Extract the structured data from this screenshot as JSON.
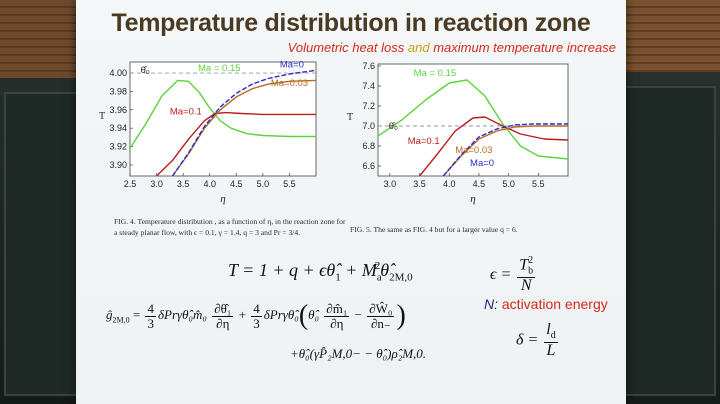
{
  "slide": {
    "title": "Temperature distribution in reaction zone",
    "subtitle_a": "Volumetric heat loss",
    "subtitle_and": "and",
    "subtitle_b": "maximum temperature increase"
  },
  "figures": [
    {
      "caption": "FIG. 4. Temperature distribution , as a function of η, in the reaction zone for a steady planar flow, with ϵ = 0.1, γ = 1.4, q = 3 and Pr = 3/4.",
      "chart_data": {
        "type": "line",
        "xlabel": "η",
        "ylabel": "T",
        "xlim": [
          2.5,
          6.0
        ],
        "ylim": [
          3.888,
          4.012
        ],
        "x_ticks": [
          "2.5",
          "3.0",
          "3.5",
          "4.0",
          "4.5",
          "5.0",
          "5.5"
        ],
        "y_ticks": [
          "3.90",
          "3.92",
          "3.94",
          "3.96",
          "3.98",
          "4.00"
        ],
        "reference_line": {
          "label": "θ̂₀",
          "y": 4.0,
          "style": "dashed",
          "color": "#9a9a9a"
        },
        "series": [
          {
            "name": "Ma = 0.15",
            "color": "#5ad43a",
            "x": [
              2.5,
              2.8,
              3.1,
              3.4,
              3.6,
              3.8,
              4.0,
              4.2,
              4.4,
              4.7,
              5.0,
              5.5,
              6.0
            ],
            "y": [
              3.918,
              3.945,
              3.975,
              3.992,
              3.991,
              3.979,
              3.962,
              3.948,
              3.94,
              3.934,
              3.932,
              3.931,
              3.931
            ]
          },
          {
            "name": "Ma=0.1",
            "color": "#b81e1e",
            "x": [
              3.0,
              3.3,
              3.6,
              3.9,
              4.1,
              4.3,
              4.6,
              5.0,
              5.5,
              6.0
            ],
            "y": [
              3.888,
              3.905,
              3.928,
              3.948,
              3.956,
              3.957,
              3.956,
              3.955,
              3.955,
              3.955
            ]
          },
          {
            "name": "Ma=0.03",
            "color": "#b86a20",
            "x": [
              3.3,
              3.6,
              3.9,
              4.2,
              4.5,
              4.8,
              5.1,
              5.5,
              6.0
            ],
            "y": [
              3.888,
              3.912,
              3.94,
              3.96,
              3.974,
              3.983,
              3.988,
              3.991,
              3.992
            ]
          },
          {
            "name": "Ma=0",
            "color": "#2a2ad0",
            "style": "dashed",
            "x": [
              3.3,
              3.6,
              3.9,
              4.2,
              4.5,
              4.8,
              5.1,
              5.5,
              6.0
            ],
            "y": [
              3.888,
              3.913,
              3.942,
              3.963,
              3.978,
              3.988,
              3.994,
              3.999,
              4.003
            ]
          }
        ],
        "annotations": [
          {
            "text": "θ̂₀",
            "x": 2.7,
            "y": 4.0,
            "color": "#222222"
          },
          {
            "text": "Ma = 0.15",
            "x": 3.78,
            "y": 4.002,
            "color": "#5ad43a"
          },
          {
            "text": "Ma=0.1",
            "x": 3.25,
            "y": 3.955,
            "color": "#b81e1e"
          },
          {
            "text": "Ma=0.03",
            "x": 5.15,
            "y": 3.986,
            "color": "#b86a20"
          },
          {
            "text": "Ma=0",
            "x": 5.32,
            "y": 4.006,
            "color": "#2a2ad0"
          }
        ]
      }
    },
    {
      "caption": "FIG. 5. The same as FIG. 4 but for a larger value q = 6.",
      "chart_data": {
        "type": "line",
        "xlabel": "η",
        "ylabel": "T",
        "xlim": [
          2.8,
          6.0
        ],
        "ylim": [
          6.5,
          7.62
        ],
        "x_ticks": [
          "3.0",
          "3.5",
          "4.0",
          "4.5",
          "5.0",
          "5.5"
        ],
        "y_ticks": [
          "6.6",
          "6.8",
          "7.0",
          "7.2",
          "7.4",
          "7.6"
        ],
        "reference_line": {
          "label": "θ̂₀",
          "y": 7.0,
          "style": "dashed",
          "color": "#9a9a9a"
        },
        "series": [
          {
            "name": "Ma = 0.15",
            "color": "#5ad43a",
            "x": [
              2.8,
              3.2,
              3.6,
              4.0,
              4.3,
              4.6,
              4.9,
              5.2,
              5.5,
              6.0
            ],
            "y": [
              6.9,
              7.06,
              7.26,
              7.43,
              7.46,
              7.3,
              7.02,
              6.8,
              6.7,
              6.67
            ]
          },
          {
            "name": "Ma=0.1",
            "color": "#b81e1e",
            "x": [
              3.5,
              3.8,
              4.1,
              4.4,
              4.6,
              4.9,
              5.2,
              5.6,
              6.0
            ],
            "y": [
              6.5,
              6.72,
              6.95,
              7.08,
              7.09,
              7.0,
              6.92,
              6.87,
              6.86
            ]
          },
          {
            "name": "Ma=0.03",
            "color": "#b86a20",
            "x": [
              3.9,
              4.2,
              4.5,
              4.8,
              5.1,
              5.4,
              5.7,
              6.0
            ],
            "y": [
              6.5,
              6.7,
              6.87,
              6.95,
              6.99,
              7.0,
              7.0,
              7.0
            ]
          },
          {
            "name": "Ma=0",
            "color": "#2a2ad0",
            "style": "dashed",
            "x": [
              3.9,
              4.2,
              4.5,
              4.8,
              5.1,
              5.4,
              5.7,
              6.0
            ],
            "y": [
              6.5,
              6.71,
              6.89,
              6.97,
              7.01,
              7.02,
              7.02,
              7.02
            ]
          }
        ],
        "annotations": [
          {
            "text": "θ̂₀",
            "x": 2.98,
            "y": 6.97,
            "color": "#222222"
          },
          {
            "text": "Ma = 0.15",
            "x": 3.4,
            "y": 7.5,
            "color": "#5ad43a"
          },
          {
            "text": "Ma=0.1",
            "x": 3.3,
            "y": 6.82,
            "color": "#b81e1e"
          },
          {
            "text": "Ma=0.03",
            "x": 4.1,
            "y": 6.73,
            "color": "#b86a20"
          },
          {
            "text": "Ma=0",
            "x": 4.35,
            "y": 6.6,
            "color": "#2a2ad0"
          }
        ]
      }
    }
  ],
  "equations": {
    "T_lhs": "T = 1 + q + ϵθ̂",
    "T_sub1": "1",
    "T_plus": " + M",
    "T_sub_a": "a",
    "T_sup_2": "2",
    "T_theta2": "θ̂",
    "T_sub_2m": "2M,0",
    "eps_lhs": "ϵ =",
    "eps_num": "T",
    "eps_num_sub": "b",
    "eps_num_sup": "2",
    "eps_den": "N",
    "note_label": "N:",
    "note_value": "activation energy",
    "delta_lhs": "δ =",
    "delta_num": "l",
    "delta_num_sub": "d",
    "delta_den": "L",
    "g_lhs": "ĝ",
    "g_sub": "2M,0",
    "g_eq": " = ",
    "f1_num": "4",
    "f1_den": "3",
    "g_t1": "δPrγθ̂₀m̂₀",
    "d1_num": "∂θ̂₁",
    "d1_den": "∂η",
    "g_plus": " + ",
    "f2_num": "4",
    "f2_den": "3",
    "g_t2": "δPrγθ̂₀",
    "paren_open": "(",
    "g_t3": "θ̂₀",
    "d2_num": "∂m̂₁",
    "d2_den": "∂η",
    "g_minus": " − ",
    "d3_num": "∂Ŵ₀",
    "d3_den": "∂n₋",
    "paren_close": ")",
    "g_line2": "+θ̂₀(γP̂₂M,0− − θ̂₀)ρ̂₂M,0."
  }
}
